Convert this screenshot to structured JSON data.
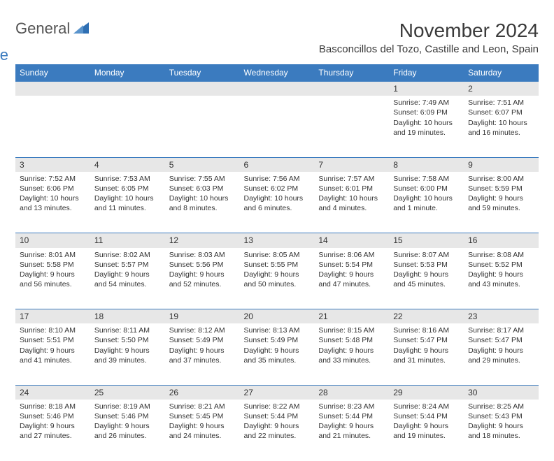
{
  "logo": {
    "text1": "General",
    "text2": "Blue",
    "icon_color": "#2f6fb3"
  },
  "title": "November 2024",
  "location": "Basconcillos del Tozo, Castille and Leon, Spain",
  "colors": {
    "header_bg": "#3b7bbf",
    "header_text": "#ffffff",
    "daynum_bg": "#e7e7e7",
    "border": "#3b7bbf",
    "text": "#333333",
    "page_bg": "#ffffff"
  },
  "day_headers": [
    "Sunday",
    "Monday",
    "Tuesday",
    "Wednesday",
    "Thursday",
    "Friday",
    "Saturday"
  ],
  "weeks": [
    [
      null,
      null,
      null,
      null,
      null,
      {
        "n": "1",
        "sunrise": "Sunrise: 7:49 AM",
        "sunset": "Sunset: 6:09 PM",
        "daylight1": "Daylight: 10 hours",
        "daylight2": "and 19 minutes."
      },
      {
        "n": "2",
        "sunrise": "Sunrise: 7:51 AM",
        "sunset": "Sunset: 6:07 PM",
        "daylight1": "Daylight: 10 hours",
        "daylight2": "and 16 minutes."
      }
    ],
    [
      {
        "n": "3",
        "sunrise": "Sunrise: 7:52 AM",
        "sunset": "Sunset: 6:06 PM",
        "daylight1": "Daylight: 10 hours",
        "daylight2": "and 13 minutes."
      },
      {
        "n": "4",
        "sunrise": "Sunrise: 7:53 AM",
        "sunset": "Sunset: 6:05 PM",
        "daylight1": "Daylight: 10 hours",
        "daylight2": "and 11 minutes."
      },
      {
        "n": "5",
        "sunrise": "Sunrise: 7:55 AM",
        "sunset": "Sunset: 6:03 PM",
        "daylight1": "Daylight: 10 hours",
        "daylight2": "and 8 minutes."
      },
      {
        "n": "6",
        "sunrise": "Sunrise: 7:56 AM",
        "sunset": "Sunset: 6:02 PM",
        "daylight1": "Daylight: 10 hours",
        "daylight2": "and 6 minutes."
      },
      {
        "n": "7",
        "sunrise": "Sunrise: 7:57 AM",
        "sunset": "Sunset: 6:01 PM",
        "daylight1": "Daylight: 10 hours",
        "daylight2": "and 4 minutes."
      },
      {
        "n": "8",
        "sunrise": "Sunrise: 7:58 AM",
        "sunset": "Sunset: 6:00 PM",
        "daylight1": "Daylight: 10 hours",
        "daylight2": "and 1 minute."
      },
      {
        "n": "9",
        "sunrise": "Sunrise: 8:00 AM",
        "sunset": "Sunset: 5:59 PM",
        "daylight1": "Daylight: 9 hours",
        "daylight2": "and 59 minutes."
      }
    ],
    [
      {
        "n": "10",
        "sunrise": "Sunrise: 8:01 AM",
        "sunset": "Sunset: 5:58 PM",
        "daylight1": "Daylight: 9 hours",
        "daylight2": "and 56 minutes."
      },
      {
        "n": "11",
        "sunrise": "Sunrise: 8:02 AM",
        "sunset": "Sunset: 5:57 PM",
        "daylight1": "Daylight: 9 hours",
        "daylight2": "and 54 minutes."
      },
      {
        "n": "12",
        "sunrise": "Sunrise: 8:03 AM",
        "sunset": "Sunset: 5:56 PM",
        "daylight1": "Daylight: 9 hours",
        "daylight2": "and 52 minutes."
      },
      {
        "n": "13",
        "sunrise": "Sunrise: 8:05 AM",
        "sunset": "Sunset: 5:55 PM",
        "daylight1": "Daylight: 9 hours",
        "daylight2": "and 50 minutes."
      },
      {
        "n": "14",
        "sunrise": "Sunrise: 8:06 AM",
        "sunset": "Sunset: 5:54 PM",
        "daylight1": "Daylight: 9 hours",
        "daylight2": "and 47 minutes."
      },
      {
        "n": "15",
        "sunrise": "Sunrise: 8:07 AM",
        "sunset": "Sunset: 5:53 PM",
        "daylight1": "Daylight: 9 hours",
        "daylight2": "and 45 minutes."
      },
      {
        "n": "16",
        "sunrise": "Sunrise: 8:08 AM",
        "sunset": "Sunset: 5:52 PM",
        "daylight1": "Daylight: 9 hours",
        "daylight2": "and 43 minutes."
      }
    ],
    [
      {
        "n": "17",
        "sunrise": "Sunrise: 8:10 AM",
        "sunset": "Sunset: 5:51 PM",
        "daylight1": "Daylight: 9 hours",
        "daylight2": "and 41 minutes."
      },
      {
        "n": "18",
        "sunrise": "Sunrise: 8:11 AM",
        "sunset": "Sunset: 5:50 PM",
        "daylight1": "Daylight: 9 hours",
        "daylight2": "and 39 minutes."
      },
      {
        "n": "19",
        "sunrise": "Sunrise: 8:12 AM",
        "sunset": "Sunset: 5:49 PM",
        "daylight1": "Daylight: 9 hours",
        "daylight2": "and 37 minutes."
      },
      {
        "n": "20",
        "sunrise": "Sunrise: 8:13 AM",
        "sunset": "Sunset: 5:49 PM",
        "daylight1": "Daylight: 9 hours",
        "daylight2": "and 35 minutes."
      },
      {
        "n": "21",
        "sunrise": "Sunrise: 8:15 AM",
        "sunset": "Sunset: 5:48 PM",
        "daylight1": "Daylight: 9 hours",
        "daylight2": "and 33 minutes."
      },
      {
        "n": "22",
        "sunrise": "Sunrise: 8:16 AM",
        "sunset": "Sunset: 5:47 PM",
        "daylight1": "Daylight: 9 hours",
        "daylight2": "and 31 minutes."
      },
      {
        "n": "23",
        "sunrise": "Sunrise: 8:17 AM",
        "sunset": "Sunset: 5:47 PM",
        "daylight1": "Daylight: 9 hours",
        "daylight2": "and 29 minutes."
      }
    ],
    [
      {
        "n": "24",
        "sunrise": "Sunrise: 8:18 AM",
        "sunset": "Sunset: 5:46 PM",
        "daylight1": "Daylight: 9 hours",
        "daylight2": "and 27 minutes."
      },
      {
        "n": "25",
        "sunrise": "Sunrise: 8:19 AM",
        "sunset": "Sunset: 5:46 PM",
        "daylight1": "Daylight: 9 hours",
        "daylight2": "and 26 minutes."
      },
      {
        "n": "26",
        "sunrise": "Sunrise: 8:21 AM",
        "sunset": "Sunset: 5:45 PM",
        "daylight1": "Daylight: 9 hours",
        "daylight2": "and 24 minutes."
      },
      {
        "n": "27",
        "sunrise": "Sunrise: 8:22 AM",
        "sunset": "Sunset: 5:44 PM",
        "daylight1": "Daylight: 9 hours",
        "daylight2": "and 22 minutes."
      },
      {
        "n": "28",
        "sunrise": "Sunrise: 8:23 AM",
        "sunset": "Sunset: 5:44 PM",
        "daylight1": "Daylight: 9 hours",
        "daylight2": "and 21 minutes."
      },
      {
        "n": "29",
        "sunrise": "Sunrise: 8:24 AM",
        "sunset": "Sunset: 5:44 PM",
        "daylight1": "Daylight: 9 hours",
        "daylight2": "and 19 minutes."
      },
      {
        "n": "30",
        "sunrise": "Sunrise: 8:25 AM",
        "sunset": "Sunset: 5:43 PM",
        "daylight1": "Daylight: 9 hours",
        "daylight2": "and 18 minutes."
      }
    ]
  ]
}
